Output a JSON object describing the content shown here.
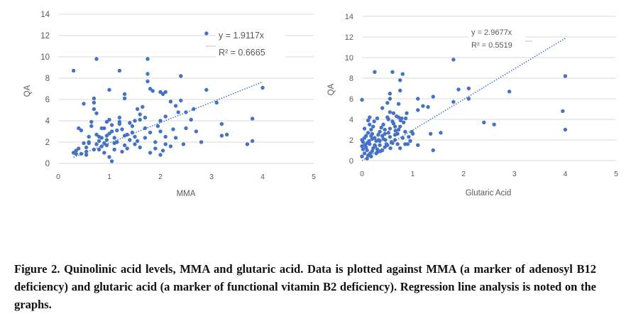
{
  "chart_data": [
    {
      "type": "scatter",
      "title": "",
      "xlabel": "MMA",
      "ylabel": "QA",
      "xlim": [
        0,
        5
      ],
      "ylim": [
        0,
        14
      ],
      "xticks": [
        "0",
        "1",
        "2",
        "3",
        "4",
        "5"
      ],
      "yticks": [
        "0",
        "2",
        "4",
        "6",
        "8",
        "10",
        "12",
        "14"
      ],
      "trendline": {
        "slope": 1.9117,
        "x_range": [
          0.3,
          4.0
        ]
      },
      "annotation": {
        "equation": "y = 1.9117x",
        "r2": "R² = 0.6665"
      },
      "marker_color": "#4472C4",
      "points": [
        [
          0.3,
          8.7
        ],
        [
          0.75,
          9.8
        ],
        [
          1.2,
          8.7
        ],
        [
          1.75,
          9.8
        ],
        [
          2.9,
          12.2
        ],
        [
          4.0,
          7.1
        ],
        [
          1.0,
          6.9
        ],
        [
          1.75,
          8.4
        ],
        [
          1.75,
          7.7
        ],
        [
          1.8,
          7.0
        ],
        [
          1.85,
          6.8
        ],
        [
          2.0,
          6.7
        ],
        [
          2.05,
          6.5
        ],
        [
          2.1,
          6.7
        ],
        [
          2.4,
          8.2
        ],
        [
          2.9,
          6.9
        ],
        [
          2.4,
          5.9
        ],
        [
          2.2,
          5.8
        ],
        [
          2.5,
          4.8
        ],
        [
          2.65,
          5.1
        ],
        [
          3.1,
          5.7
        ],
        [
          3.2,
          3.7
        ],
        [
          3.2,
          2.6
        ],
        [
          3.3,
          2.7
        ],
        [
          3.7,
          1.8
        ],
        [
          3.8,
          2.1
        ],
        [
          3.8,
          4.2
        ],
        [
          2.8,
          2.0
        ],
        [
          2.45,
          1.8
        ],
        [
          2.25,
          3.2
        ],
        [
          2.35,
          4.8
        ],
        [
          2.3,
          5.4
        ],
        [
          2.1,
          4.4
        ],
        [
          2.0,
          4.0
        ],
        [
          1.95,
          3.5
        ],
        [
          2.0,
          3.0
        ],
        [
          2.1,
          2.5
        ],
        [
          2.1,
          1.8
        ],
        [
          2.05,
          1.2
        ],
        [
          2.0,
          0.8
        ],
        [
          1.9,
          2.0
        ],
        [
          1.8,
          2.9
        ],
        [
          1.7,
          3.3
        ],
        [
          1.7,
          4.3
        ],
        [
          1.65,
          5.3
        ],
        [
          1.55,
          5.1
        ],
        [
          1.6,
          4.6
        ],
        [
          1.5,
          4.0
        ],
        [
          1.45,
          3.5
        ],
        [
          1.45,
          2.9
        ],
        [
          1.4,
          2.2
        ],
        [
          1.35,
          1.4
        ],
        [
          1.3,
          1.7
        ],
        [
          1.3,
          2.6
        ],
        [
          1.3,
          6.5
        ],
        [
          1.3,
          6.1
        ],
        [
          1.25,
          3.2
        ],
        [
          1.2,
          3.9
        ],
        [
          1.2,
          4.3
        ],
        [
          1.15,
          2.0
        ],
        [
          1.1,
          1.3
        ],
        [
          1.1,
          2.4
        ],
        [
          1.05,
          3.0
        ],
        [
          1.05,
          3.6
        ],
        [
          1.0,
          4.1
        ],
        [
          1.0,
          2.8
        ],
        [
          0.95,
          2.2
        ],
        [
          0.95,
          1.7
        ],
        [
          0.9,
          1.0
        ],
        [
          0.9,
          1.9
        ],
        [
          0.85,
          2.4
        ],
        [
          0.85,
          3.3
        ],
        [
          0.8,
          2.1
        ],
        [
          0.8,
          1.3
        ],
        [
          0.75,
          1.8
        ],
        [
          0.75,
          2.7
        ],
        [
          0.75,
          4.7
        ],
        [
          0.7,
          6.1
        ],
        [
          0.7,
          5.7
        ],
        [
          0.7,
          5.1
        ],
        [
          0.65,
          3.9
        ],
        [
          0.65,
          3.5
        ],
        [
          0.6,
          2.5
        ],
        [
          0.6,
          2.0
        ],
        [
          0.55,
          1.1
        ],
        [
          0.55,
          1.5
        ],
        [
          0.5,
          1.9
        ],
        [
          0.5,
          5.6
        ],
        [
          0.45,
          3.1
        ],
        [
          0.45,
          0.9
        ],
        [
          0.4,
          1.4
        ],
        [
          0.35,
          1.2
        ],
        [
          0.35,
          0.9
        ],
        [
          0.3,
          1.0
        ],
        [
          1.9,
          1.4
        ],
        [
          2.3,
          2.4
        ],
        [
          2.5,
          3.3
        ],
        [
          1.6,
          1.5
        ],
        [
          1.55,
          2.1
        ],
        [
          1.5,
          2.5
        ],
        [
          1.0,
          0.6
        ],
        [
          1.05,
          0.2
        ],
        [
          0.85,
          1.6
        ],
        [
          0.6,
          1.9
        ],
        [
          1.15,
          3.1
        ],
        [
          1.4,
          3.8
        ],
        [
          1.8,
          1.0
        ],
        [
          2.2,
          1.6
        ],
        [
          0.95,
          3.9
        ],
        [
          0.55,
          0.8
        ],
        [
          1.7,
          2.4
        ],
        [
          0.8,
          2.5
        ],
        [
          0.7,
          1.3
        ],
        [
          1.1,
          1.9
        ],
        [
          1.25,
          1.1
        ],
        [
          1.5,
          1.8
        ],
        [
          0.9,
          3.3
        ],
        [
          2.6,
          4.1
        ],
        [
          2.7,
          3.0
        ],
        [
          0.4,
          3.3
        ],
        [
          0.95,
          2.6
        ],
        [
          1.35,
          2.7
        ],
        [
          1.6,
          4.1
        ],
        [
          2.0,
          6.7
        ],
        [
          1.2,
          3.7
        ]
      ]
    },
    {
      "type": "scatter",
      "title": "",
      "xlabel": "Glutaric Acid",
      "ylabel": "QA",
      "xlim": [
        0,
        5
      ],
      "ylim": [
        0,
        14
      ],
      "xticks": [
        "0",
        "1",
        "2",
        "3",
        "4",
        "5"
      ],
      "yticks": [
        "0",
        "2",
        "4",
        "6",
        "8",
        "10",
        "12",
        "14"
      ],
      "trendline": {
        "slope": 2.9677,
        "x_range": [
          0.0,
          4.0
        ]
      },
      "annotation": {
        "equation": "y = 2.9677x",
        "r2": "R² = 0.5519"
      },
      "marker_color": "#4472C4",
      "points": [
        [
          1.8,
          9.8
        ],
        [
          4.0,
          8.2
        ],
        [
          3.95,
          4.8
        ],
        [
          4.0,
          3.0
        ],
        [
          2.9,
          6.7
        ],
        [
          2.1,
          7.0
        ],
        [
          1.9,
          6.9
        ],
        [
          2.1,
          6.0
        ],
        [
          1.8,
          5.7
        ],
        [
          2.4,
          3.7
        ],
        [
          2.6,
          3.5
        ],
        [
          1.55,
          2.7
        ],
        [
          1.35,
          2.6
        ],
        [
          1.4,
          6.2
        ],
        [
          1.3,
          5.2
        ],
        [
          1.2,
          5.3
        ],
        [
          1.1,
          6.0
        ],
        [
          1.1,
          4.9
        ],
        [
          1.4,
          1.0
        ],
        [
          1.1,
          1.5
        ],
        [
          0.8,
          8.4
        ],
        [
          0.75,
          7.8
        ],
        [
          0.75,
          6.8
        ],
        [
          0.6,
          8.6
        ],
        [
          0.55,
          6.5
        ],
        [
          0.55,
          6.0
        ],
        [
          0.5,
          5.6
        ],
        [
          0.4,
          5.1
        ],
        [
          0.25,
          8.6
        ],
        [
          0.0,
          5.9
        ],
        [
          0.9,
          1.6
        ],
        [
          0.85,
          1.6
        ],
        [
          0.75,
          1.2
        ],
        [
          0.7,
          2.6
        ],
        [
          0.65,
          3.3
        ],
        [
          0.6,
          3.8
        ],
        [
          0.55,
          4.7
        ],
        [
          0.5,
          4.2
        ],
        [
          0.45,
          3.0
        ],
        [
          0.4,
          2.4
        ],
        [
          0.35,
          1.9
        ],
        [
          0.3,
          1.1
        ],
        [
          0.3,
          0.8
        ],
        [
          0.25,
          1.5
        ],
        [
          0.2,
          2.1
        ],
        [
          0.2,
          2.6
        ],
        [
          0.15,
          3.5
        ],
        [
          0.15,
          4.2
        ],
        [
          0.1,
          1.7
        ],
        [
          0.1,
          1.0
        ],
        [
          0.05,
          2.2
        ],
        [
          0.05,
          0.7
        ],
        [
          0.0,
          1.4
        ],
        [
          0.0,
          2.0
        ],
        [
          0.02,
          1.1
        ],
        [
          0.08,
          1.3
        ],
        [
          0.12,
          0.5
        ],
        [
          0.18,
          0.4
        ],
        [
          0.22,
          1.2
        ],
        [
          0.28,
          1.9
        ],
        [
          0.32,
          2.5
        ],
        [
          0.38,
          3.2
        ],
        [
          0.42,
          2.1
        ],
        [
          0.48,
          1.6
        ],
        [
          0.52,
          2.7
        ],
        [
          0.58,
          1.8
        ],
        [
          0.62,
          3.6
        ],
        [
          0.68,
          4.3
        ],
        [
          0.72,
          5.5
        ],
        [
          0.78,
          4.1
        ],
        [
          0.82,
          3.7
        ],
        [
          0.88,
          4.6
        ],
        [
          0.92,
          2.3
        ],
        [
          0.98,
          2.8
        ],
        [
          0.05,
          3.1
        ],
        [
          0.12,
          2.7
        ],
        [
          0.18,
          3.0
        ],
        [
          0.24,
          3.8
        ],
        [
          0.28,
          0.7
        ],
        [
          0.35,
          2.8
        ],
        [
          0.45,
          1.3
        ],
        [
          0.55,
          2.3
        ],
        [
          0.65,
          2.0
        ],
        [
          0.72,
          3.0
        ],
        [
          0.8,
          2.2
        ],
        [
          0.3,
          4.1
        ],
        [
          0.1,
          0.2
        ],
        [
          0.2,
          0.9
        ],
        [
          0.4,
          1.0
        ],
        [
          0.5,
          1.5
        ],
        [
          0.6,
          1.7
        ],
        [
          0.7,
          1.6
        ],
        [
          0.0,
          0.4
        ],
        [
          0.15,
          1.6
        ],
        [
          0.25,
          2.2
        ],
        [
          0.35,
          1.5
        ],
        [
          0.45,
          2.6
        ],
        [
          0.55,
          3.1
        ],
        [
          0.65,
          2.5
        ],
        [
          0.75,
          3.3
        ],
        [
          0.85,
          2.8
        ],
        [
          0.95,
          1.9
        ],
        [
          0.08,
          2.4
        ],
        [
          0.14,
          1.9
        ],
        [
          0.22,
          3.3
        ],
        [
          0.33,
          2.0
        ],
        [
          0.42,
          3.5
        ],
        [
          0.52,
          4.0
        ],
        [
          0.62,
          4.6
        ],
        [
          0.72,
          4.2
        ],
        [
          0.02,
          1.8
        ],
        [
          0.06,
          1.5
        ],
        [
          0.16,
          0.7
        ],
        [
          0.26,
          1.4
        ],
        [
          0.36,
          0.9
        ],
        [
          0.46,
          2.0
        ],
        [
          0.56,
          1.2
        ],
        [
          0.66,
          2.9
        ],
        [
          0.76,
          3.9
        ],
        [
          0.86,
          4.1
        ],
        [
          1.0,
          2.6
        ],
        [
          0.12,
          3.9
        ],
        [
          0.18,
          2.4
        ]
      ]
    }
  ],
  "caption": "Figure 2. Quinolinic acid levels, MMA and glutaric acid. Data is plotted against MMA (a marker of adenosyl B12 deficiency) and glutaric acid (a marker of functional vitamin B2 deficiency). Regression line analysis is noted on the graphs."
}
